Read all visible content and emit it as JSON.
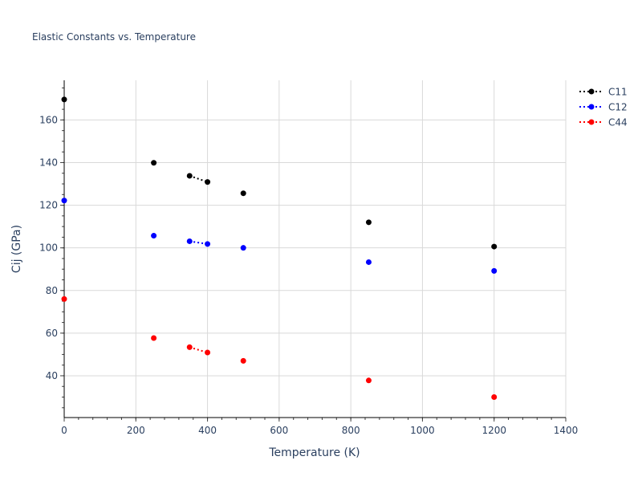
{
  "chart_data": {
    "type": "scatter",
    "title": "Elastic Constants vs. Temperature",
    "xlabel": "Temperature (K)",
    "ylabel": "Cij (GPa)",
    "xlim": [
      0,
      1400
    ],
    "ylim": [
      20.4,
      178.6
    ],
    "xticks": [
      0,
      200,
      400,
      600,
      800,
      1000,
      1200,
      1400
    ],
    "yticks": [
      40,
      60,
      80,
      100,
      120,
      140,
      160
    ],
    "grid": true,
    "legend_position": "top-right",
    "line_style": "dotted",
    "connected_x_pairs": [
      [
        350,
        400
      ]
    ],
    "series": [
      {
        "name": "C11",
        "color": "#000000",
        "x": [
          0,
          250,
          350,
          400,
          500,
          850,
          1200
        ],
        "y": [
          169.6,
          139.9,
          133.8,
          130.9,
          125.6,
          112.0,
          100.6
        ]
      },
      {
        "name": "C12",
        "color": "#0000ff",
        "x": [
          0,
          250,
          350,
          400,
          500,
          850,
          1200
        ],
        "y": [
          122.2,
          105.7,
          103.1,
          101.8,
          100.0,
          93.3,
          89.2
        ]
      },
      {
        "name": "C44",
        "color": "#ff0000",
        "x": [
          0,
          250,
          350,
          400,
          500,
          850,
          1200
        ],
        "y": [
          76.0,
          57.7,
          53.4,
          50.9,
          47.0,
          37.8,
          30.0
        ]
      }
    ]
  }
}
